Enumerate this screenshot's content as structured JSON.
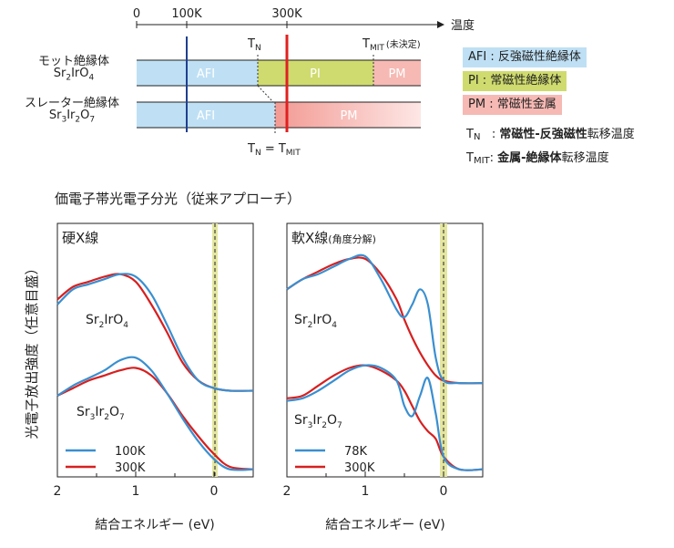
{
  "phase_diagram": {
    "axis_title": "温度",
    "ticks": [
      "0",
      "100K",
      "300K"
    ],
    "tn_label": "T",
    "tn_sub": "N",
    "tmit_label": "T",
    "tmit_sub": "MIT",
    "tmit_note": "(未決定)",
    "tn_eq_tmit": [
      "T",
      "N",
      " = T",
      "MIT"
    ],
    "materials": [
      {
        "name": "モット絶縁体",
        "formula": "Sr2IrO4",
        "formula_html": "Sr<sub>2</sub>IrO<sub>4</sub>",
        "phases": [
          {
            "label": "AFI",
            "from_K": 0,
            "to_K": 240
          },
          {
            "label": "PI",
            "from_K": 240,
            "to_K": 455
          },
          {
            "label": "PM",
            "from_K": 455,
            "to_K": 540
          }
        ],
        "tn_K": 240
      },
      {
        "name": "スレーター絶縁体",
        "formula": "Sr3Ir2O7",
        "formula_html": "Sr<sub>3</sub>Ir<sub>2</sub>O<sub>7</sub>",
        "phases": [
          {
            "label": "AFI",
            "from_K": 0,
            "to_K": 285
          },
          {
            "label": "PM",
            "from_K": 285,
            "to_K": 540
          }
        ],
        "tn_K": 285
      }
    ],
    "legend": [
      {
        "key": "AFI",
        "text": "AFI : 反強磁性絶縁体",
        "color": "#bfe0f4"
      },
      {
        "key": "PI",
        "text": "PI : 常磁性絶縁体",
        "color": "#cfdb6e"
      },
      {
        "key": "PM",
        "text": "PM : 常磁性金属",
        "color": "#f6b9b4"
      }
    ],
    "defs": [
      {
        "sym": "T",
        "sub": "N",
        "text_bold": "常磁性-反強磁性",
        "text": "転移温度"
      },
      {
        "sym": "T",
        "sub": "MIT",
        "text_bold": "金属-絶縁体",
        "text": "転移温度"
      }
    ],
    "colors": {
      "afi": "#bfe0f4",
      "pi": "#cfdb6e",
      "pm": "#f6b9b4",
      "line_100K": "#1f3f8f",
      "line_300K": "#e02020"
    }
  },
  "spectra": {
    "title": "価電子帯光電子分光（従来アプローチ）",
    "ylabel": "光電子放出強度（任意目盛）",
    "colors": {
      "cold": "#3a8fd0",
      "warm": "#d62020",
      "band": "#e4e6a0"
    },
    "panels": [
      {
        "label": "硬X線",
        "label_small": "",
        "xlabel": "結合エネルギー (eV)",
        "xticks": [
          "2",
          "1",
          "0"
        ],
        "legend": [
          {
            "name": "100K",
            "color": "#3a8fd0"
          },
          {
            "name": "300K",
            "color": "#d62020"
          }
        ],
        "samples": [
          "Sr2IrO4",
          "Sr3Ir2O7"
        ],
        "sample_html": [
          "Sr<sub>2</sub>IrO<sub>4</sub>",
          "Sr<sub>3</sub>Ir<sub>2</sub>O<sub>7</sub>"
        ]
      },
      {
        "label": "軟X線",
        "label_small": "(角度分解)",
        "xlabel": "結合エネルギー (eV)",
        "xticks": [
          "2",
          "1",
          "0"
        ],
        "legend": [
          {
            "name": "78K",
            "color": "#3a8fd0"
          },
          {
            "name": "300K",
            "color": "#d62020"
          }
        ],
        "samples": [
          "Sr2IrO4",
          "Sr3Ir2O7"
        ],
        "sample_html": [
          "Sr<sub>2</sub>IrO<sub>4</sub>",
          "Sr<sub>3</sub>Ir<sub>2</sub>O<sub>7</sub>"
        ]
      }
    ]
  },
  "chart_data": [
    {
      "type": "line",
      "title": "硬X線",
      "xlabel": "結合エネルギー (eV)",
      "ylabel": "光電子放出強度（任意目盛）",
      "xlim": [
        2,
        -0.5
      ],
      "series": [
        {
          "name": "100K",
          "sample": "Sr2IrO4",
          "x": [
            2,
            1.8,
            1.6,
            1.4,
            1.2,
            1.0,
            0.8,
            0.6,
            0.4,
            0.2,
            0.0,
            -0.2,
            -0.5
          ],
          "y": [
            0.68,
            0.74,
            0.76,
            0.78,
            0.8,
            0.79,
            0.72,
            0.6,
            0.47,
            0.38,
            0.35,
            0.34,
            0.34
          ]
        },
        {
          "name": "300K",
          "sample": "Sr2IrO4",
          "x": [
            2,
            1.8,
            1.6,
            1.4,
            1.2,
            1.0,
            0.8,
            0.6,
            0.4,
            0.2,
            0.0,
            -0.2,
            -0.5
          ],
          "y": [
            0.7,
            0.75,
            0.77,
            0.79,
            0.8,
            0.77,
            0.68,
            0.57,
            0.45,
            0.38,
            0.35,
            0.34,
            0.34
          ]
        },
        {
          "name": "100K",
          "sample": "Sr3Ir2O7",
          "x": [
            2,
            1.8,
            1.6,
            1.4,
            1.2,
            1.0,
            0.8,
            0.6,
            0.4,
            0.2,
            0.0,
            -0.2,
            -0.5
          ],
          "y": [
            0.32,
            0.36,
            0.39,
            0.42,
            0.46,
            0.47,
            0.42,
            0.33,
            0.23,
            0.14,
            0.07,
            0.03,
            0.03
          ]
        },
        {
          "name": "300K",
          "sample": "Sr3Ir2O7",
          "x": [
            2,
            1.8,
            1.6,
            1.4,
            1.2,
            1.0,
            0.8,
            0.6,
            0.4,
            0.2,
            0.0,
            -0.2,
            -0.5
          ],
          "y": [
            0.32,
            0.35,
            0.38,
            0.4,
            0.42,
            0.43,
            0.4,
            0.33,
            0.24,
            0.16,
            0.09,
            0.04,
            0.03
          ]
        }
      ]
    },
    {
      "type": "line",
      "title": "軟X線(角度分解)",
      "xlabel": "結合エネルギー (eV)",
      "ylabel": "光電子放出強度（任意目盛）",
      "xlim": [
        2,
        -0.5
      ],
      "series": [
        {
          "name": "78K",
          "sample": "Sr2IrO4",
          "x": [
            2,
            1.8,
            1.6,
            1.4,
            1.2,
            1.0,
            0.8,
            0.6,
            0.5,
            0.4,
            0.3,
            0.2,
            0.1,
            0.0,
            -0.2,
            -0.5
          ],
          "y": [
            0.74,
            0.78,
            0.8,
            0.83,
            0.86,
            0.87,
            0.78,
            0.66,
            0.63,
            0.68,
            0.74,
            0.68,
            0.47,
            0.38,
            0.37,
            0.37
          ]
        },
        {
          "name": "300K",
          "sample": "Sr2IrO4",
          "x": [
            2,
            1.8,
            1.6,
            1.4,
            1.2,
            1.0,
            0.8,
            0.6,
            0.5,
            0.4,
            0.3,
            0.2,
            0.1,
            0.0,
            -0.2,
            -0.5
          ],
          "y": [
            0.74,
            0.78,
            0.81,
            0.84,
            0.86,
            0.86,
            0.8,
            0.7,
            0.62,
            0.55,
            0.49,
            0.44,
            0.4,
            0.38,
            0.37,
            0.37
          ]
        },
        {
          "name": "78K",
          "sample": "Sr3Ir2O7",
          "x": [
            2,
            1.8,
            1.6,
            1.4,
            1.2,
            1.0,
            0.8,
            0.6,
            0.5,
            0.4,
            0.3,
            0.2,
            0.1,
            0.0,
            -0.2,
            -0.5
          ],
          "y": [
            0.3,
            0.31,
            0.34,
            0.38,
            0.42,
            0.44,
            0.43,
            0.38,
            0.28,
            0.24,
            0.32,
            0.39,
            0.25,
            0.08,
            0.03,
            0.03
          ]
        },
        {
          "name": "300K",
          "sample": "Sr3Ir2O7",
          "x": [
            2,
            1.8,
            1.6,
            1.4,
            1.2,
            1.0,
            0.8,
            0.6,
            0.5,
            0.4,
            0.3,
            0.2,
            0.1,
            0.0,
            -0.2,
            -0.5
          ],
          "y": [
            0.31,
            0.32,
            0.36,
            0.4,
            0.43,
            0.44,
            0.42,
            0.38,
            0.34,
            0.28,
            0.22,
            0.18,
            0.15,
            0.08,
            0.03,
            0.03
          ]
        }
      ]
    }
  ]
}
